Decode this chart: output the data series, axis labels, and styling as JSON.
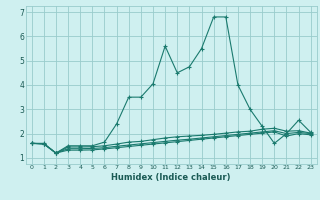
{
  "title": "",
  "xlabel": "Humidex (Indice chaleur)",
  "ylabel": "",
  "bg_color": "#cff0f0",
  "grid_color": "#99cccc",
  "line_color": "#1a7a6e",
  "xlim": [
    -0.5,
    23.5
  ],
  "ylim": [
    0.75,
    7.25
  ],
  "x_ticks": [
    0,
    1,
    2,
    3,
    4,
    5,
    6,
    7,
    8,
    9,
    10,
    11,
    12,
    13,
    14,
    15,
    16,
    17,
    18,
    19,
    20,
    21,
    22,
    23
  ],
  "y_ticks": [
    1,
    2,
    3,
    4,
    5,
    6,
    7
  ],
  "series": [
    [
      1.6,
      1.6,
      1.2,
      1.5,
      1.5,
      1.5,
      1.65,
      2.4,
      3.5,
      3.5,
      4.05,
      5.6,
      4.5,
      4.75,
      5.5,
      6.8,
      6.8,
      4.0,
      3.0,
      2.3,
      1.6,
      2.0,
      2.55,
      2.05
    ],
    [
      1.6,
      1.58,
      1.2,
      1.45,
      1.45,
      1.46,
      1.5,
      1.57,
      1.65,
      1.68,
      1.75,
      1.82,
      1.87,
      1.9,
      1.93,
      1.97,
      2.02,
      2.07,
      2.1,
      2.18,
      2.22,
      2.1,
      2.12,
      2.02
    ],
    [
      1.6,
      1.58,
      1.2,
      1.38,
      1.38,
      1.39,
      1.42,
      1.48,
      1.53,
      1.58,
      1.63,
      1.68,
      1.73,
      1.77,
      1.82,
      1.87,
      1.92,
      1.97,
      2.02,
      2.07,
      2.12,
      2.0,
      2.05,
      2.0
    ],
    [
      1.6,
      1.57,
      1.2,
      1.32,
      1.32,
      1.33,
      1.37,
      1.42,
      1.47,
      1.52,
      1.57,
      1.62,
      1.67,
      1.72,
      1.77,
      1.82,
      1.87,
      1.92,
      1.97,
      2.02,
      2.07,
      1.9,
      2.0,
      1.95
    ]
  ]
}
